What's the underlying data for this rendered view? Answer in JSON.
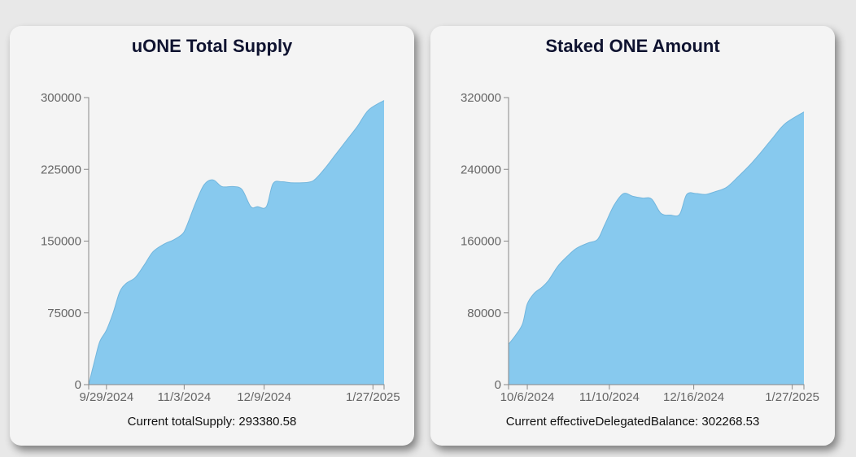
{
  "chart_data": [
    {
      "type": "area",
      "title": "uONE Total Supply",
      "footer": "Current totalSupply: 293380.58",
      "color": "#87c9ee",
      "stroke": "#72b6dd",
      "ylim": [
        0,
        300000
      ],
      "yticks": [
        0,
        75000,
        150000,
        225000,
        300000
      ],
      "ytick_labels": [
        "0",
        "75000",
        "150000",
        "225000",
        "300000"
      ],
      "xlim": [
        "2024-09-21",
        "2025-02-01"
      ],
      "xticks": [
        "2024-09-29",
        "2024-11-03",
        "2024-12-09",
        "2025-01-27"
      ],
      "xtick_labels": [
        "9/29/2024",
        "11/3/2024",
        "12/9/2024",
        "1/27/2025"
      ],
      "x": [
        "2024-09-21",
        "2024-09-24",
        "2024-09-26",
        "2024-09-29",
        "2024-10-02",
        "2024-10-05",
        "2024-10-08",
        "2024-10-12",
        "2024-10-16",
        "2024-10-20",
        "2024-10-25",
        "2024-10-29",
        "2024-11-02",
        "2024-11-04",
        "2024-11-08",
        "2024-11-12",
        "2024-11-16",
        "2024-11-20",
        "2024-11-25",
        "2024-11-29",
        "2024-12-03",
        "2024-12-06",
        "2024-12-10",
        "2024-12-13",
        "2024-12-17",
        "2024-12-21",
        "2024-12-26",
        "2024-12-31",
        "2025-01-05",
        "2025-01-10",
        "2025-01-15",
        "2025-01-20",
        "2025-01-25",
        "2025-02-01"
      ],
      "y": [
        0,
        28000,
        45000,
        57000,
        75000,
        97000,
        106000,
        112000,
        125000,
        139000,
        147000,
        151000,
        157000,
        165000,
        189000,
        209000,
        214000,
        207000,
        207000,
        204000,
        186000,
        186000,
        186000,
        210000,
        212000,
        211000,
        211000,
        213000,
        225000,
        240000,
        255000,
        270000,
        287000,
        297000
      ]
    },
    {
      "type": "area",
      "title": "Staked ONE Amount",
      "footer": "Current effectiveDelegatedBalance: 302268.53",
      "color": "#87c9ee",
      "stroke": "#72b6dd",
      "ylim": [
        0,
        320000
      ],
      "yticks": [
        0,
        80000,
        160000,
        240000,
        320000
      ],
      "ytick_labels": [
        "0",
        "80000",
        "160000",
        "240000",
        "320000"
      ],
      "xlim": [
        "2024-09-28",
        "2025-02-01"
      ],
      "xticks": [
        "2024-10-06",
        "2024-11-10",
        "2024-12-16",
        "2025-01-27"
      ],
      "xtick_labels": [
        "10/6/2024",
        "11/10/2024",
        "12/16/2024",
        "1/27/2025"
      ],
      "x": [
        "2024-09-28",
        "2024-10-01",
        "2024-10-04",
        "2024-10-06",
        "2024-10-09",
        "2024-10-12",
        "2024-10-15",
        "2024-10-19",
        "2024-10-23",
        "2024-10-27",
        "2024-11-01",
        "2024-11-05",
        "2024-11-08",
        "2024-11-12",
        "2024-11-16",
        "2024-11-20",
        "2024-11-24",
        "2024-11-28",
        "2024-12-02",
        "2024-12-06",
        "2024-12-10",
        "2024-12-13",
        "2024-12-17",
        "2024-12-21",
        "2024-12-25",
        "2024-12-30",
        "2025-01-04",
        "2025-01-09",
        "2025-01-14",
        "2025-01-19",
        "2025-01-24",
        "2025-02-01"
      ],
      "y": [
        45000,
        55000,
        68000,
        90000,
        102000,
        108000,
        116000,
        132000,
        143000,
        152000,
        158000,
        162000,
        178000,
        200000,
        213000,
        210000,
        208000,
        207000,
        191000,
        189000,
        190000,
        212000,
        213000,
        212000,
        215000,
        220000,
        232000,
        245000,
        260000,
        276000,
        291000,
        304000
      ]
    }
  ]
}
